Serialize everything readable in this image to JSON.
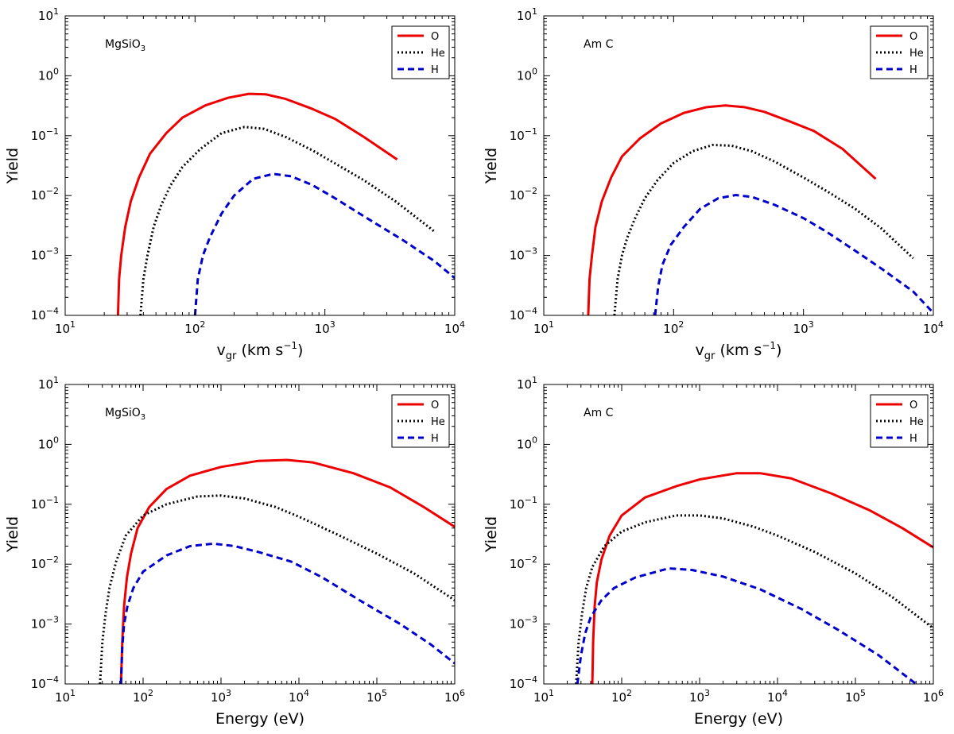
{
  "chart_data": [
    {
      "type": "line",
      "annotation": {
        "main": "MgSiO",
        "sub": "3"
      },
      "xlabel": {
        "main": "v",
        "sub": "gr",
        "rest": " (km s",
        "sup": "−1",
        "end": ")"
      },
      "ylabel": "Yield",
      "xscale": "log",
      "yscale": "log",
      "xlim": [
        10,
        10000
      ],
      "ylim": [
        0.0001,
        10
      ],
      "x_tick_exponents": [
        "1",
        "2",
        "3",
        "4"
      ],
      "y_tick_exponents": [
        "−4",
        "−3",
        "−2",
        "−1",
        "0",
        "1"
      ],
      "legend_position": "top-right",
      "series": [
        {
          "name": "O",
          "color": "#ee0000",
          "dash": "solid",
          "points": [
            [
              25.5,
              0.0001
            ],
            [
              26,
              0.0004
            ],
            [
              27,
              0.001
            ],
            [
              29,
              0.003
            ],
            [
              32,
              0.008
            ],
            [
              37,
              0.02
            ],
            [
              45,
              0.05
            ],
            [
              60,
              0.11
            ],
            [
              80,
              0.2
            ],
            [
              120,
              0.32
            ],
            [
              180,
              0.43
            ],
            [
              260,
              0.5
            ],
            [
              350,
              0.49
            ],
            [
              500,
              0.41
            ],
            [
              800,
              0.28
            ],
            [
              1200,
              0.19
            ],
            [
              2000,
              0.095
            ],
            [
              3600,
              0.04
            ]
          ]
        },
        {
          "name": "He",
          "color": "#000000",
          "dash": "dashdot",
          "points": [
            [
              38,
              0.0001
            ],
            [
              40,
              0.0004
            ],
            [
              43,
              0.001
            ],
            [
              48,
              0.003
            ],
            [
              55,
              0.007
            ],
            [
              65,
              0.015
            ],
            [
              80,
              0.03
            ],
            [
              110,
              0.06
            ],
            [
              160,
              0.11
            ],
            [
              240,
              0.14
            ],
            [
              340,
              0.13
            ],
            [
              500,
              0.095
            ],
            [
              800,
              0.057
            ],
            [
              1300,
              0.031
            ],
            [
              2000,
              0.018
            ],
            [
              3500,
              0.008
            ],
            [
              7000,
              0.0025
            ]
          ]
        },
        {
          "name": "H",
          "color": "#0000cc",
          "dash": "dashed",
          "points": [
            [
              100,
              0.0001
            ],
            [
              105,
              0.0004
            ],
            [
              115,
              0.001
            ],
            [
              130,
              0.002
            ],
            [
              160,
              0.005
            ],
            [
              200,
              0.01
            ],
            [
              280,
              0.019
            ],
            [
              400,
              0.023
            ],
            [
              550,
              0.021
            ],
            [
              800,
              0.015
            ],
            [
              1200,
              0.009
            ],
            [
              2000,
              0.0045
            ],
            [
              4000,
              0.0018
            ],
            [
              7000,
              0.0008
            ],
            [
              10000,
              0.00042
            ]
          ]
        }
      ]
    },
    {
      "type": "line",
      "annotation": {
        "main": "Am C",
        "sub": ""
      },
      "xlabel": {
        "main": "v",
        "sub": "gr",
        "rest": " (km s",
        "sup": "−1",
        "end": ")"
      },
      "ylabel": "Yield",
      "xscale": "log",
      "yscale": "log",
      "xlim": [
        10,
        10000
      ],
      "ylim": [
        0.0001,
        10
      ],
      "x_tick_exponents": [
        "1",
        "2",
        "3",
        "4"
      ],
      "y_tick_exponents": [
        "−4",
        "−3",
        "−2",
        "−1",
        "0",
        "1"
      ],
      "legend_position": "top-right",
      "series": [
        {
          "name": "O",
          "color": "#ee0000",
          "dash": "solid",
          "points": [
            [
              22,
              0.0001
            ],
            [
              22.5,
              0.0004
            ],
            [
              23.5,
              0.001
            ],
            [
              25,
              0.003
            ],
            [
              28,
              0.008
            ],
            [
              33,
              0.02
            ],
            [
              40,
              0.045
            ],
            [
              55,
              0.09
            ],
            [
              80,
              0.16
            ],
            [
              120,
              0.24
            ],
            [
              180,
              0.3
            ],
            [
              250,
              0.32
            ],
            [
              350,
              0.3
            ],
            [
              500,
              0.25
            ],
            [
              800,
              0.17
            ],
            [
              1200,
              0.12
            ],
            [
              2000,
              0.06
            ],
            [
              3600,
              0.019
            ]
          ]
        },
        {
          "name": "He",
          "color": "#000000",
          "dash": "dashdot",
          "points": [
            [
              35,
              0.0001
            ],
            [
              37,
              0.0004
            ],
            [
              40,
              0.001
            ],
            [
              44,
              0.002
            ],
            [
              50,
              0.004
            ],
            [
              60,
              0.009
            ],
            [
              75,
              0.018
            ],
            [
              100,
              0.035
            ],
            [
              140,
              0.055
            ],
            [
              200,
              0.07
            ],
            [
              280,
              0.068
            ],
            [
              400,
              0.055
            ],
            [
              600,
              0.037
            ],
            [
              1000,
              0.02
            ],
            [
              1600,
              0.011
            ],
            [
              2500,
              0.006
            ],
            [
              4000,
              0.0028
            ],
            [
              7000,
              0.0009
            ]
          ]
        },
        {
          "name": "H",
          "color": "#0000cc",
          "dash": "dashed",
          "points": [
            [
              72,
              0.0001
            ],
            [
              76,
              0.0003
            ],
            [
              82,
              0.0007
            ],
            [
              95,
              0.0015
            ],
            [
              120,
              0.003
            ],
            [
              160,
              0.006
            ],
            [
              220,
              0.009
            ],
            [
              300,
              0.0102
            ],
            [
              400,
              0.0095
            ],
            [
              600,
              0.007
            ],
            [
              1000,
              0.0042
            ],
            [
              1500,
              0.0025
            ],
            [
              2500,
              0.0012
            ],
            [
              4000,
              0.0006
            ],
            [
              7000,
              0.00025
            ],
            [
              10000,
              0.00011
            ]
          ]
        }
      ]
    },
    {
      "type": "line",
      "annotation": {
        "main": "MgSiO",
        "sub": "3"
      },
      "xlabel": {
        "main": "Energy (eV)",
        "sub": "",
        "rest": "",
        "sup": "",
        "end": ""
      },
      "ylabel": "Yield",
      "xscale": "log",
      "yscale": "log",
      "xlim": [
        10,
        1000000
      ],
      "ylim": [
        0.0001,
        10
      ],
      "x_tick_exponents": [
        "1",
        "2",
        "3",
        "4",
        "5",
        "6"
      ],
      "y_tick_exponents": [
        "−4",
        "−3",
        "−2",
        "−1",
        "0",
        "1"
      ],
      "legend_position": "top-right",
      "series": [
        {
          "name": "O",
          "color": "#ee0000",
          "dash": "solid",
          "points": [
            [
              52,
              0.0001
            ],
            [
              54,
              0.0005
            ],
            [
              57,
              0.002
            ],
            [
              62,
              0.006
            ],
            [
              70,
              0.015
            ],
            [
              85,
              0.04
            ],
            [
              120,
              0.09
            ],
            [
              200,
              0.18
            ],
            [
              400,
              0.3
            ],
            [
              1000,
              0.42
            ],
            [
              3000,
              0.53
            ],
            [
              7000,
              0.55
            ],
            [
              15000,
              0.5
            ],
            [
              50000,
              0.33
            ],
            [
              150000,
              0.19
            ],
            [
              400000,
              0.09
            ],
            [
              1000000,
              0.042
            ]
          ]
        },
        {
          "name": "He",
          "color": "#000000",
          "dash": "dashdot",
          "points": [
            [
              28,
              0.0001
            ],
            [
              30,
              0.0005
            ],
            [
              33,
              0.0015
            ],
            [
              37,
              0.004
            ],
            [
              45,
              0.011
            ],
            [
              60,
              0.03
            ],
            [
              100,
              0.065
            ],
            [
              200,
              0.1
            ],
            [
              500,
              0.135
            ],
            [
              1000,
              0.14
            ],
            [
              2000,
              0.125
            ],
            [
              5000,
              0.09
            ],
            [
              10000,
              0.062
            ],
            [
              30000,
              0.032
            ],
            [
              100000,
              0.015
            ],
            [
              300000,
              0.007
            ],
            [
              1000000,
              0.0025
            ]
          ]
        },
        {
          "name": "H",
          "color": "#0000cc",
          "dash": "dashed",
          "points": [
            [
              52,
              0.0001
            ],
            [
              54,
              0.0004
            ],
            [
              57,
              0.001
            ],
            [
              63,
              0.002
            ],
            [
              75,
              0.004
            ],
            [
              100,
              0.0075
            ],
            [
              200,
              0.014
            ],
            [
              400,
              0.02
            ],
            [
              800,
              0.022
            ],
            [
              1500,
              0.02
            ],
            [
              3000,
              0.016
            ],
            [
              8000,
              0.011
            ],
            [
              20000,
              0.006
            ],
            [
              60000,
              0.0025
            ],
            [
              200000,
              0.001
            ],
            [
              500000,
              0.00045
            ],
            [
              1000000,
              0.00022
            ]
          ]
        }
      ]
    },
    {
      "type": "line",
      "annotation": {
        "main": "Am C",
        "sub": ""
      },
      "xlabel": {
        "main": "Energy (eV)",
        "sub": "",
        "rest": "",
        "sup": "",
        "end": ""
      },
      "ylabel": "Yield",
      "xscale": "log",
      "yscale": "log",
      "xlim": [
        10,
        1000000
      ],
      "ylim": [
        0.0001,
        10
      ],
      "x_tick_exponents": [
        "1",
        "2",
        "3",
        "4",
        "5",
        "6"
      ],
      "y_tick_exponents": [
        "−4",
        "−3",
        "−2",
        "−1",
        "0",
        "1"
      ],
      "legend_position": "top-right",
      "series": [
        {
          "name": "O",
          "color": "#ee0000",
          "dash": "solid",
          "points": [
            [
              42,
              0.0001
            ],
            [
              43,
              0.0005
            ],
            [
              45,
              0.002
            ],
            [
              48,
              0.005
            ],
            [
              55,
              0.012
            ],
            [
              70,
              0.03
            ],
            [
              100,
              0.065
            ],
            [
              200,
              0.13
            ],
            [
              500,
              0.2
            ],
            [
              1000,
              0.26
            ],
            [
              3000,
              0.33
            ],
            [
              6000,
              0.33
            ],
            [
              15000,
              0.27
            ],
            [
              50000,
              0.15
            ],
            [
              150000,
              0.08
            ],
            [
              400000,
              0.04
            ],
            [
              1000000,
              0.019
            ]
          ]
        },
        {
          "name": "He",
          "color": "#000000",
          "dash": "dashdot",
          "points": [
            [
              26,
              0.0001
            ],
            [
              28,
              0.0005
            ],
            [
              31,
              0.0015
            ],
            [
              35,
              0.004
            ],
            [
              42,
              0.009
            ],
            [
              60,
              0.02
            ],
            [
              100,
              0.035
            ],
            [
              200,
              0.05
            ],
            [
              500,
              0.065
            ],
            [
              1000,
              0.065
            ],
            [
              2000,
              0.058
            ],
            [
              5000,
              0.042
            ],
            [
              10000,
              0.03
            ],
            [
              30000,
              0.016
            ],
            [
              100000,
              0.007
            ],
            [
              300000,
              0.0028
            ],
            [
              1000000,
              0.00085
            ]
          ]
        },
        {
          "name": "H",
          "color": "#0000cc",
          "dash": "dashed",
          "points": [
            [
              27,
              0.0001
            ],
            [
              30,
              0.0003
            ],
            [
              34,
              0.0007
            ],
            [
              40,
              0.0013
            ],
            [
              55,
              0.0025
            ],
            [
              80,
              0.004
            ],
            [
              150,
              0.006
            ],
            [
              400,
              0.0085
            ],
            [
              800,
              0.008
            ],
            [
              2000,
              0.0062
            ],
            [
              6000,
              0.0038
            ],
            [
              20000,
              0.0018
            ],
            [
              60000,
              0.0008
            ],
            [
              200000,
              0.0003
            ],
            [
              600000,
              0.0001
            ]
          ]
        }
      ]
    }
  ]
}
